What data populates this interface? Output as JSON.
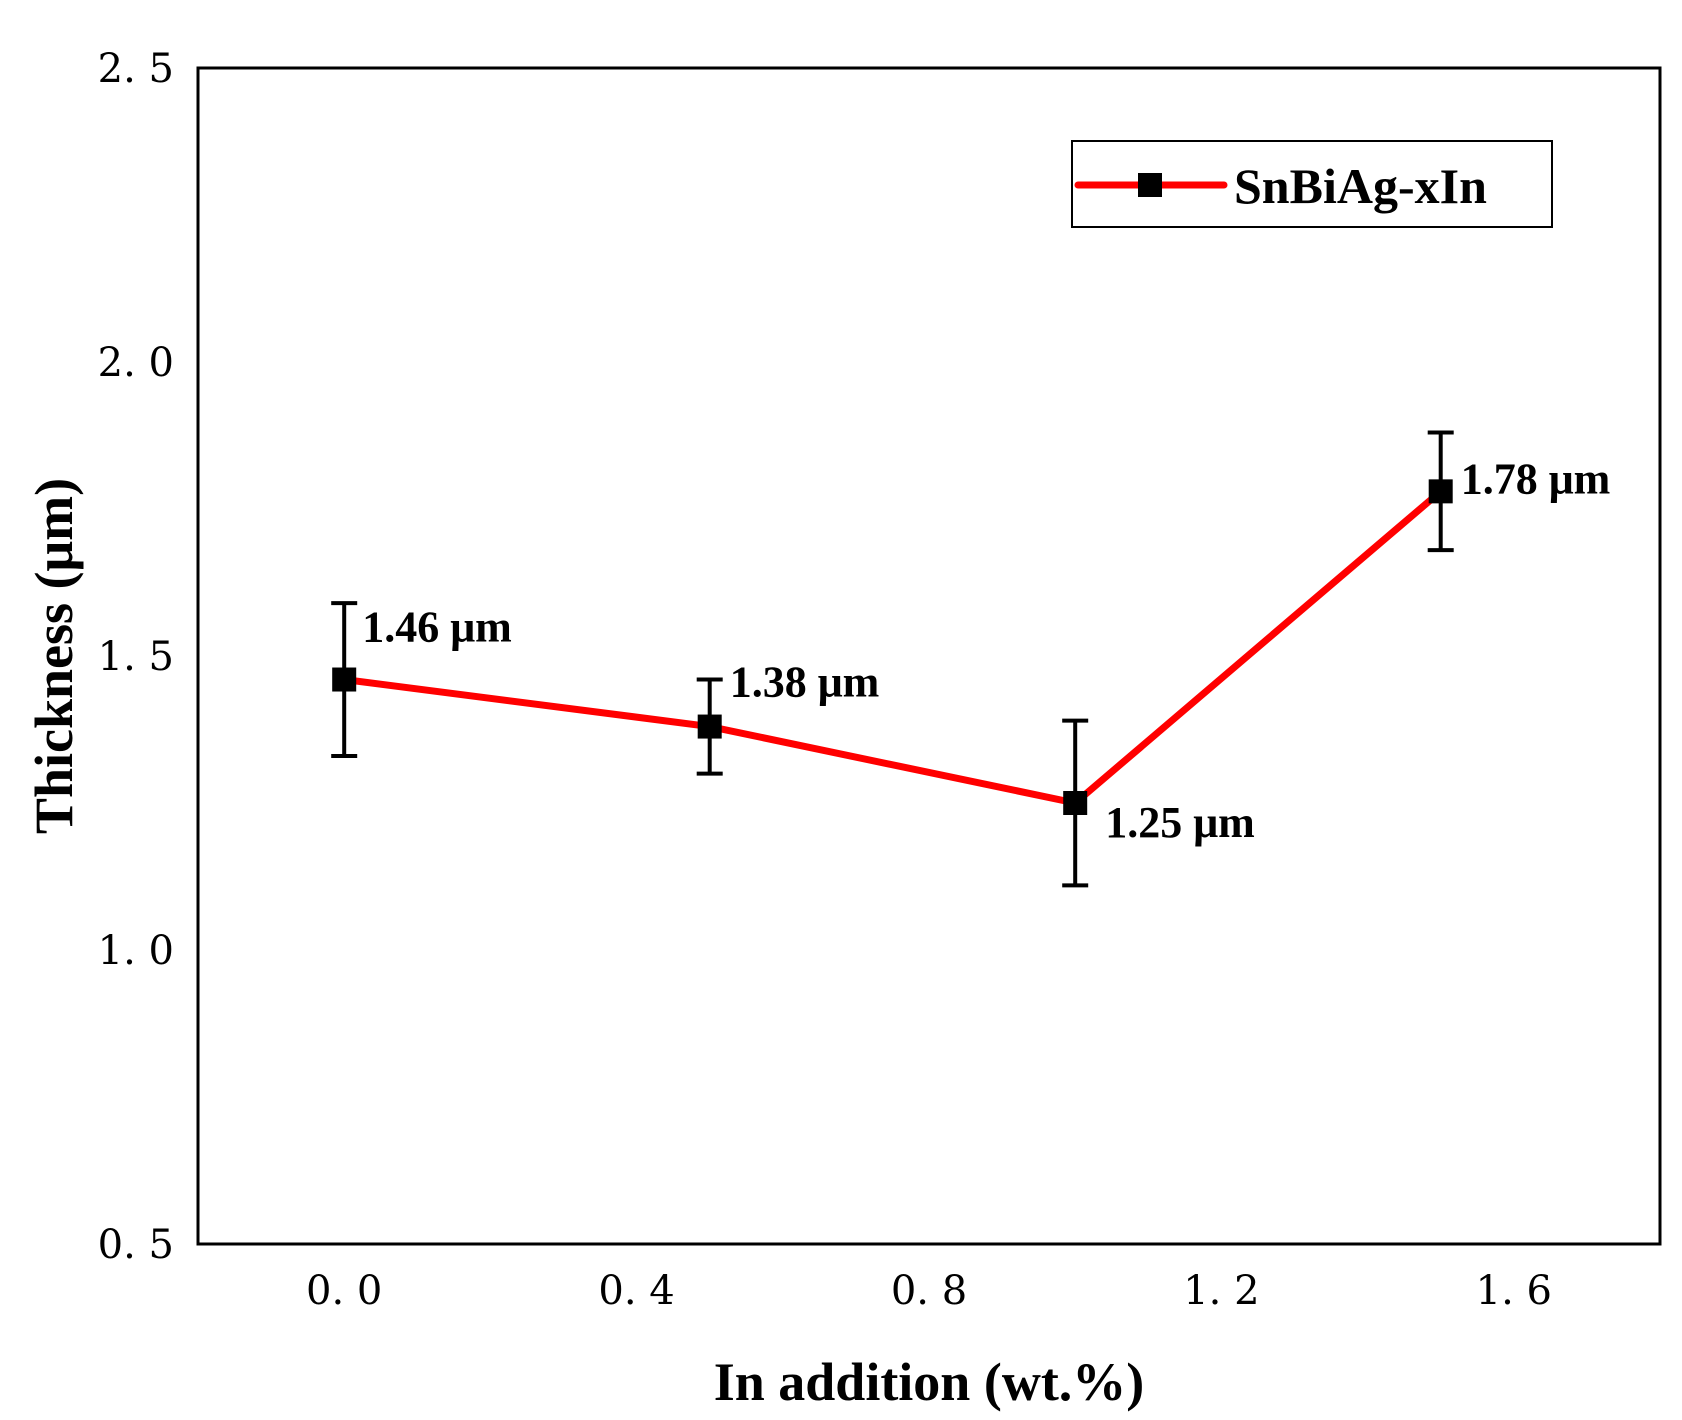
{
  "chart_data": {
    "type": "line",
    "title": "",
    "xlabel": "In addition (wt.%)",
    "ylabel": "Thickness (μm)",
    "xlim": [
      -0.2,
      1.8
    ],
    "ylim": [
      0.5,
      2.5
    ],
    "xticks": [
      0.0,
      0.4,
      0.8,
      1.2,
      1.6
    ],
    "xtick_labels": [
      "0. 0",
      "0. 4",
      "0. 8",
      "1. 2",
      "1. 6"
    ],
    "yticks": [
      0.5,
      1.0,
      1.5,
      2.0,
      2.5
    ],
    "ytick_labels": [
      "0. 5",
      "1. 0",
      "1. 5",
      "2. 0",
      "2. 5"
    ],
    "grid": false,
    "legend_position": "top-right",
    "series": [
      {
        "name": "SnBiAg-xIn",
        "color": "#ff0000",
        "marker": "square",
        "x": [
          0.0,
          0.5,
          1.0,
          1.5
        ],
        "y": [
          1.46,
          1.38,
          1.25,
          1.78
        ],
        "error": [
          0.13,
          0.08,
          0.14,
          0.1
        ],
        "data_labels": [
          "1.46 μm",
          "1.38 μm",
          "1.25 μm",
          "1.78 μm"
        ]
      }
    ]
  }
}
